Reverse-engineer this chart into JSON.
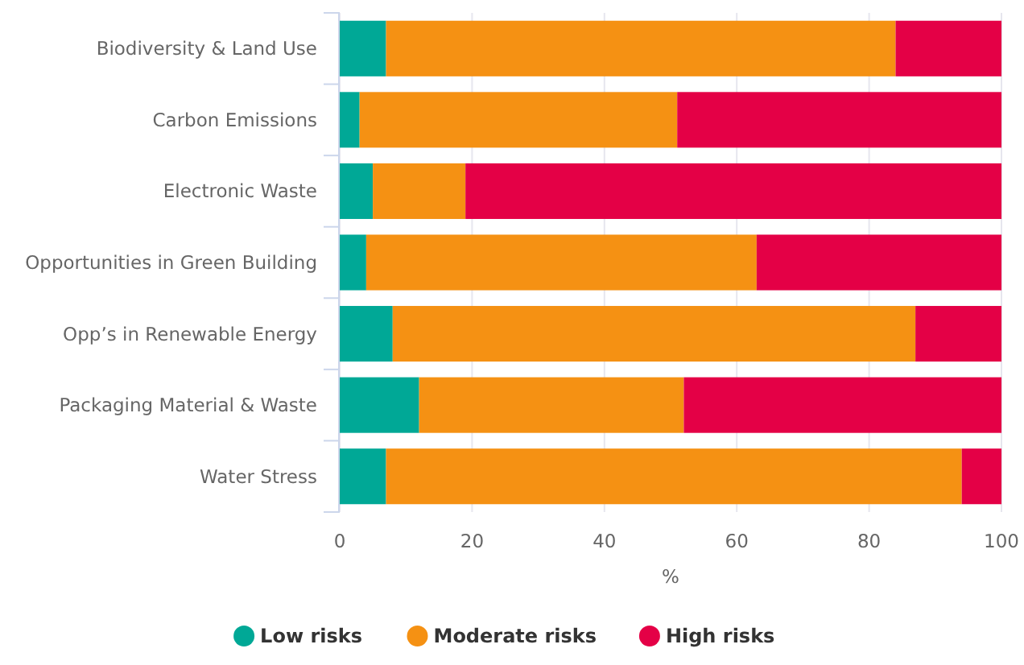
{
  "chart_data": {
    "type": "bar",
    "orientation": "horizontal",
    "stacked": true,
    "xlabel": "%",
    "categories": [
      "Biodiversity & Land Use",
      "Carbon Emissions",
      "Electronic Waste",
      "Opportunities in Green Building",
      "Opp’s in Renewable Energy",
      "Packaging Material & Waste",
      "Water Stress"
    ],
    "series": [
      {
        "name": "Low risks",
        "color": "#00a896",
        "values": [
          7,
          3,
          5,
          4,
          8,
          12,
          7
        ]
      },
      {
        "name": "Moderate risks",
        "color": "#f59113",
        "values": [
          77,
          48,
          14,
          59,
          79,
          40,
          87
        ]
      },
      {
        "name": "High risks",
        "color": "#e40046",
        "values": [
          16,
          49,
          81,
          37,
          13,
          48,
          6
        ]
      }
    ],
    "xlim": [
      0,
      100
    ],
    "xticks": [
      0,
      20,
      40,
      60,
      80,
      100
    ],
    "grid": "x",
    "legend": "bottom"
  }
}
